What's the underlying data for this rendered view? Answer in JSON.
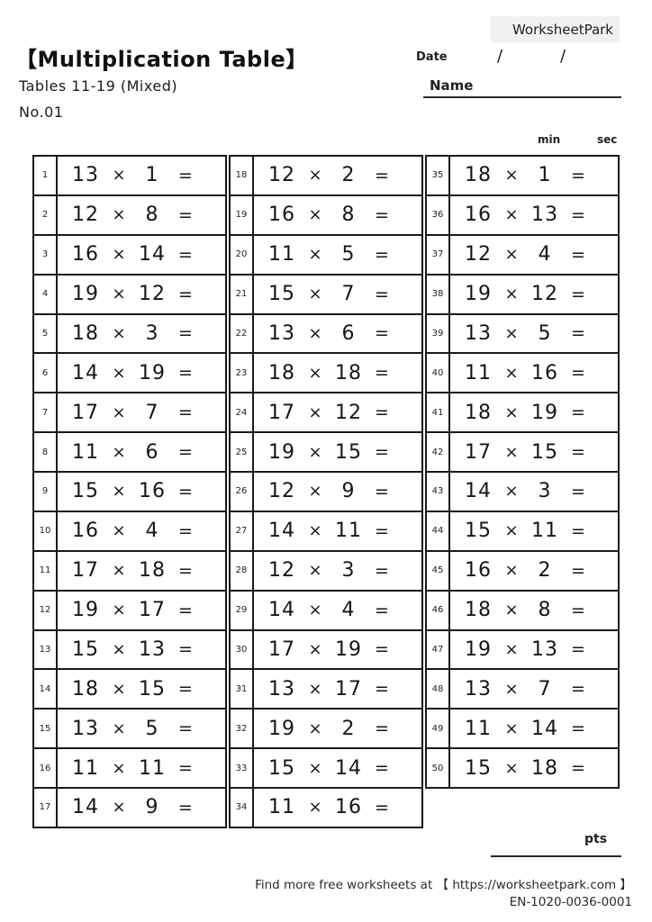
{
  "header": {
    "brand": "WorksheetPark",
    "title": "【Multiplication Table】",
    "subtitle": "Tables 11-19 (Mixed)",
    "sheet_no": "No.01",
    "date_label": "Date",
    "date_slash_1": "/",
    "date_slash_2": "/",
    "name_label": "Name",
    "min_label": "min",
    "sec_label": "sec"
  },
  "table": {
    "symbols": {
      "times": "×",
      "equals": "="
    },
    "columns": [
      {
        "problems": [
          {
            "no": "1",
            "a": "13",
            "b": "1"
          },
          {
            "no": "2",
            "a": "12",
            "b": "8"
          },
          {
            "no": "3",
            "a": "16",
            "b": "14"
          },
          {
            "no": "4",
            "a": "19",
            "b": "12"
          },
          {
            "no": "5",
            "a": "18",
            "b": "3"
          },
          {
            "no": "6",
            "a": "14",
            "b": "19"
          },
          {
            "no": "7",
            "a": "17",
            "b": "7"
          },
          {
            "no": "8",
            "a": "11",
            "b": "6"
          },
          {
            "no": "9",
            "a": "15",
            "b": "16"
          },
          {
            "no": "10",
            "a": "16",
            "b": "4"
          },
          {
            "no": "11",
            "a": "17",
            "b": "18"
          },
          {
            "no": "12",
            "a": "19",
            "b": "17"
          },
          {
            "no": "13",
            "a": "15",
            "b": "13"
          },
          {
            "no": "14",
            "a": "18",
            "b": "15"
          },
          {
            "no": "15",
            "a": "13",
            "b": "5"
          },
          {
            "no": "16",
            "a": "11",
            "b": "11"
          },
          {
            "no": "17",
            "a": "14",
            "b": "9"
          }
        ]
      },
      {
        "problems": [
          {
            "no": "18",
            "a": "12",
            "b": "2"
          },
          {
            "no": "19",
            "a": "16",
            "b": "8"
          },
          {
            "no": "20",
            "a": "11",
            "b": "5"
          },
          {
            "no": "21",
            "a": "15",
            "b": "7"
          },
          {
            "no": "22",
            "a": "13",
            "b": "6"
          },
          {
            "no": "23",
            "a": "18",
            "b": "18"
          },
          {
            "no": "24",
            "a": "17",
            "b": "12"
          },
          {
            "no": "25",
            "a": "19",
            "b": "15"
          },
          {
            "no": "26",
            "a": "12",
            "b": "9"
          },
          {
            "no": "27",
            "a": "14",
            "b": "11"
          },
          {
            "no": "28",
            "a": "12",
            "b": "3"
          },
          {
            "no": "29",
            "a": "14",
            "b": "4"
          },
          {
            "no": "30",
            "a": "17",
            "b": "19"
          },
          {
            "no": "31",
            "a": "13",
            "b": "17"
          },
          {
            "no": "32",
            "a": "19",
            "b": "2"
          },
          {
            "no": "33",
            "a": "15",
            "b": "14"
          },
          {
            "no": "34",
            "a": "11",
            "b": "16"
          }
        ]
      },
      {
        "problems": [
          {
            "no": "35",
            "a": "18",
            "b": "1"
          },
          {
            "no": "36",
            "a": "16",
            "b": "13"
          },
          {
            "no": "37",
            "a": "12",
            "b": "4"
          },
          {
            "no": "38",
            "a": "19",
            "b": "12"
          },
          {
            "no": "39",
            "a": "13",
            "b": "5"
          },
          {
            "no": "40",
            "a": "11",
            "b": "16"
          },
          {
            "no": "41",
            "a": "18",
            "b": "19"
          },
          {
            "no": "42",
            "a": "17",
            "b": "15"
          },
          {
            "no": "43",
            "a": "14",
            "b": "3"
          },
          {
            "no": "44",
            "a": "15",
            "b": "11"
          },
          {
            "no": "45",
            "a": "16",
            "b": "2"
          },
          {
            "no": "46",
            "a": "18",
            "b": "8"
          },
          {
            "no": "47",
            "a": "19",
            "b": "13"
          },
          {
            "no": "48",
            "a": "13",
            "b": "7"
          },
          {
            "no": "49",
            "a": "11",
            "b": "14"
          },
          {
            "no": "50",
            "a": "15",
            "b": "18"
          }
        ]
      }
    ]
  },
  "footer": {
    "pts_label": "pts",
    "find_more": "Find more free worksheets at 【 https://worksheetpark.com 】",
    "code": "EN-1020-0036-0001"
  },
  "colors": {
    "badge_bg": "#f1f1f1",
    "ink": "#1a1a1a",
    "paper": "#ffffff"
  }
}
